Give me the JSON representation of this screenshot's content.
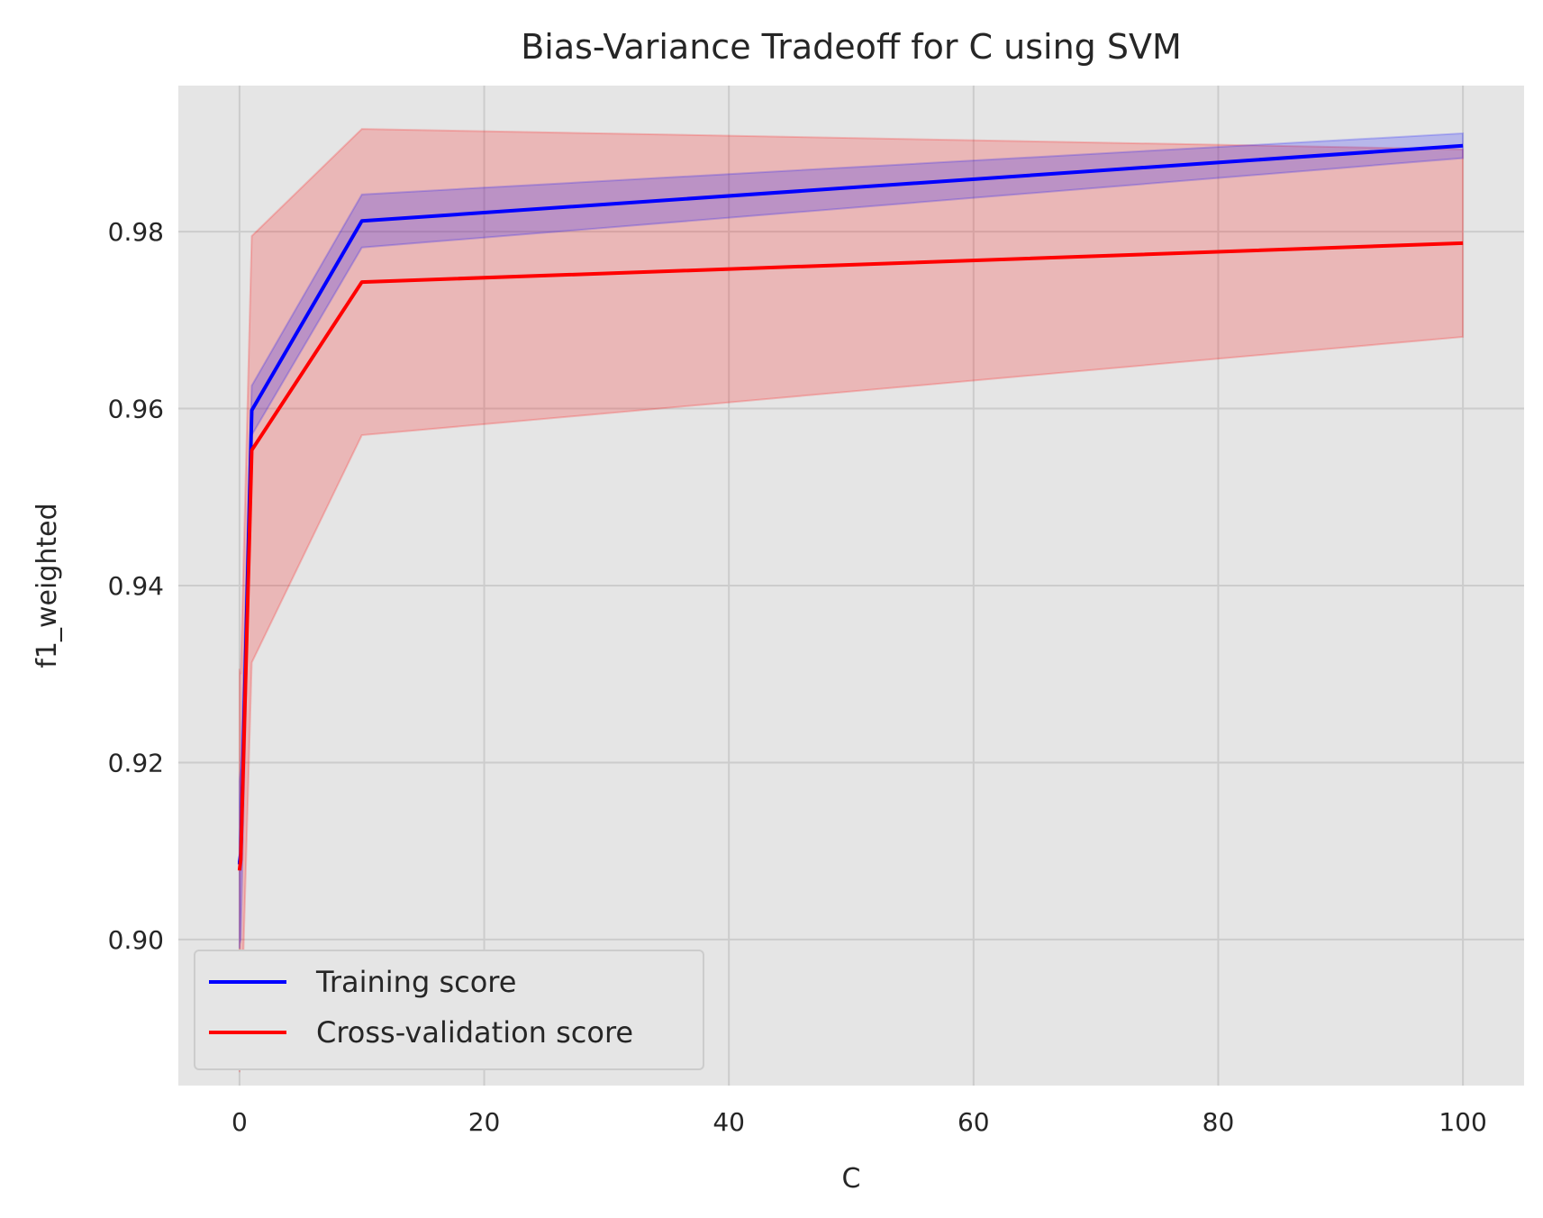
{
  "chart_data": {
    "type": "line",
    "title": "Bias-Variance Tradeoff for C using SVM",
    "xlabel": "C",
    "ylabel": "f1_weighted",
    "xlim": [
      -5,
      105
    ],
    "ylim": [
      0.8835,
      0.9965
    ],
    "xticks": [
      0,
      20,
      40,
      60,
      80,
      100
    ],
    "xtick_labels": [
      "0",
      "20",
      "40",
      "60",
      "80",
      "100"
    ],
    "yticks": [
      0.9,
      0.92,
      0.94,
      0.96,
      0.98
    ],
    "ytick_labels": [
      "0.90",
      "0.92",
      "0.94",
      "0.96",
      "0.98"
    ],
    "grid": true,
    "legend_position": "lower-left",
    "x": [
      0.001,
      0.01,
      0.1,
      1,
      10,
      100
    ],
    "series": [
      {
        "name": "Training score",
        "color": "#0000ff",
        "values": [
          0.9085,
          0.9088,
          0.9097,
          0.9598,
          0.9812,
          0.9897
        ],
        "lower": [
          0.899,
          0.8995,
          0.9,
          0.957,
          0.9782,
          0.9883
        ],
        "upper": [
          0.918,
          0.9181,
          0.9194,
          0.9626,
          0.9842,
          0.9911
        ]
      },
      {
        "name": "Cross-validation score",
        "color": "#ff0000",
        "values": [
          0.9078,
          0.908,
          0.909,
          0.9553,
          0.9743,
          0.9787
        ],
        "lower": [
          0.885,
          0.8855,
          0.888,
          0.9313,
          0.957,
          0.9681
        ],
        "upper": [
          0.9306,
          0.9305,
          0.93,
          0.9795,
          0.9916,
          0.9893
        ]
      }
    ]
  }
}
